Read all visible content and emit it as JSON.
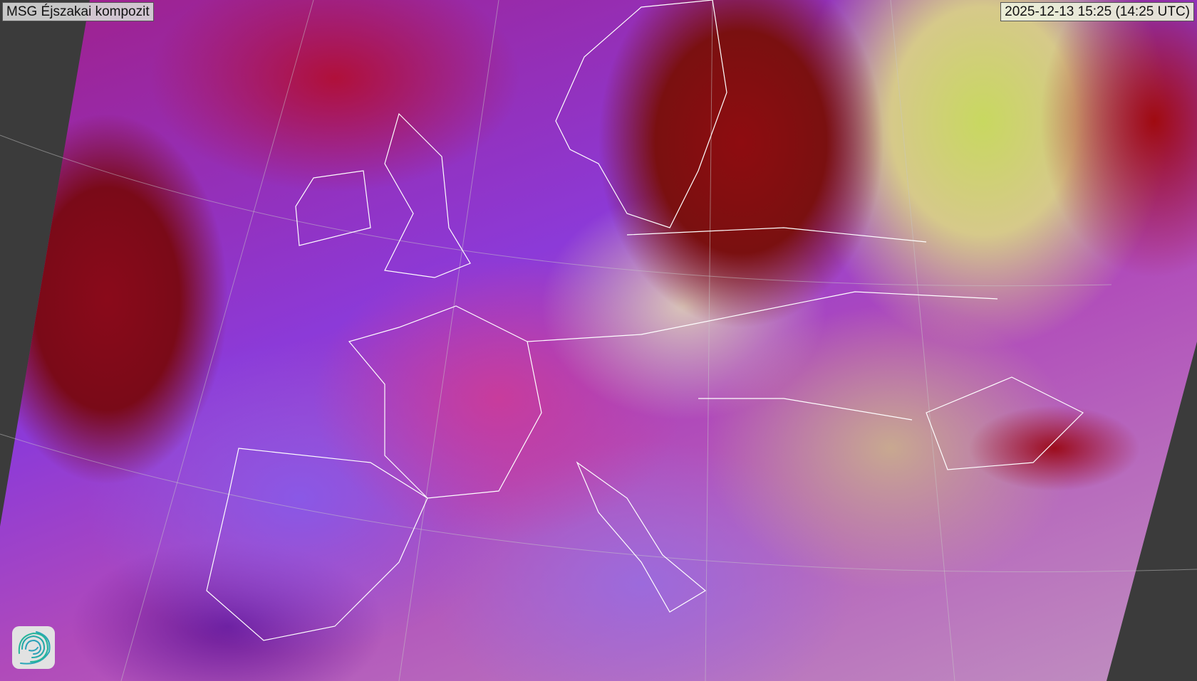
{
  "map": {
    "title": "MSG Éjszakai kompozit",
    "timestamp": "2025-12-13 15:25 (14:25 UTC)",
    "region": "Europe",
    "background_color": "#3b3b3b",
    "coastline_color": "#ffffff",
    "logo_icon": "spiral-logo-icon"
  }
}
